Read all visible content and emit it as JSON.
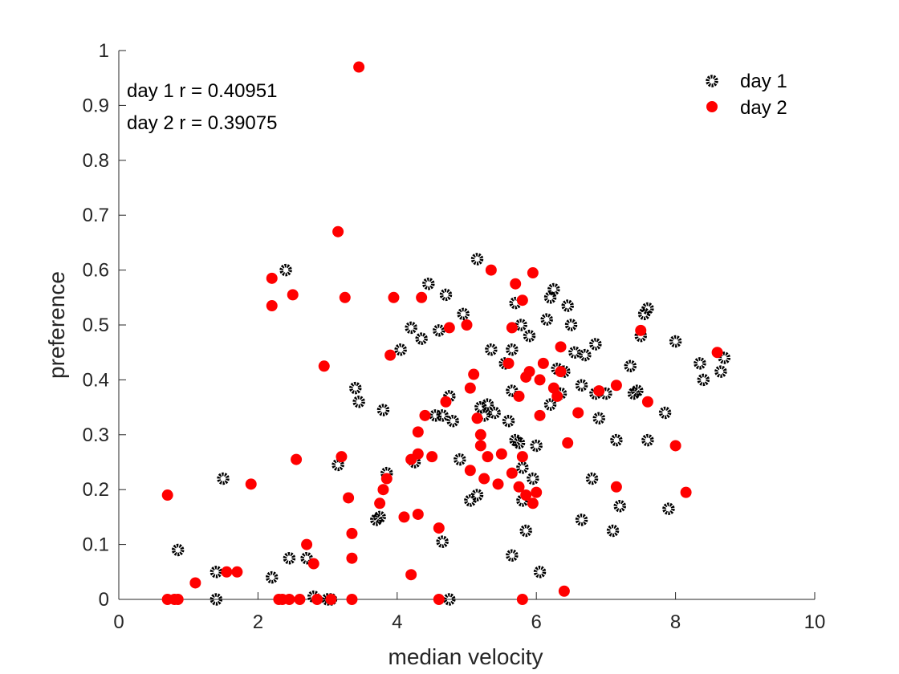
{
  "chart_data": {
    "type": "scatter",
    "title": "",
    "xlabel": "median velocity",
    "ylabel": "preference",
    "xlim": [
      0,
      10
    ],
    "ylim": [
      0,
      1
    ],
    "xticks": [
      "0",
      "2",
      "4",
      "6",
      "8",
      "10"
    ],
    "yticks": [
      "0",
      "0.1",
      "0.2",
      "0.3",
      "0.4",
      "0.5",
      "0.6",
      "0.7",
      "0.8",
      "0.9",
      "1"
    ],
    "grid": false,
    "legend_position": "top-right",
    "annotations": [
      "day 1 r = 0.40951",
      "day 2 r = 0.39075"
    ],
    "series": [
      {
        "name": "day 1",
        "marker": "open-circle",
        "color": "#000000",
        "points": [
          [
            0.85,
            0.09
          ],
          [
            1.4,
            0.05
          ],
          [
            1.4,
            0.0
          ],
          [
            1.5,
            0.22
          ],
          [
            2.2,
            0.04
          ],
          [
            2.4,
            0.6
          ],
          [
            2.45,
            0.075
          ],
          [
            2.7,
            0.075
          ],
          [
            2.8,
            0.005
          ],
          [
            3.0,
            0.0
          ],
          [
            3.05,
            0.0
          ],
          [
            3.15,
            0.245
          ],
          [
            3.4,
            0.385
          ],
          [
            3.45,
            0.36
          ],
          [
            3.7,
            0.145
          ],
          [
            3.75,
            0.15
          ],
          [
            3.8,
            0.345
          ],
          [
            3.85,
            0.23
          ],
          [
            4.05,
            0.455
          ],
          [
            4.2,
            0.495
          ],
          [
            4.25,
            0.25
          ],
          [
            4.35,
            0.475
          ],
          [
            4.45,
            0.575
          ],
          [
            4.55,
            0.335
          ],
          [
            4.6,
            0.49
          ],
          [
            4.65,
            0.105
          ],
          [
            4.65,
            0.335
          ],
          [
            4.7,
            0.555
          ],
          [
            4.75,
            0.0
          ],
          [
            4.75,
            0.37
          ],
          [
            4.8,
            0.325
          ],
          [
            4.9,
            0.255
          ],
          [
            4.95,
            0.52
          ],
          [
            5.05,
            0.18
          ],
          [
            5.15,
            0.19
          ],
          [
            5.15,
            0.62
          ],
          [
            5.2,
            0.35
          ],
          [
            5.25,
            0.335
          ],
          [
            5.3,
            0.355
          ],
          [
            5.35,
            0.455
          ],
          [
            5.4,
            0.34
          ],
          [
            5.55,
            0.43
          ],
          [
            5.6,
            0.325
          ],
          [
            5.65,
            0.455
          ],
          [
            5.65,
            0.38
          ],
          [
            5.65,
            0.08
          ],
          [
            5.7,
            0.54
          ],
          [
            5.7,
            0.29
          ],
          [
            5.75,
            0.285
          ],
          [
            5.78,
            0.5
          ],
          [
            5.8,
            0.18
          ],
          [
            5.8,
            0.24
          ],
          [
            5.85,
            0.125
          ],
          [
            5.9,
            0.48
          ],
          [
            5.95,
            0.22
          ],
          [
            6.0,
            0.28
          ],
          [
            6.05,
            0.05
          ],
          [
            6.15,
            0.51
          ],
          [
            6.2,
            0.55
          ],
          [
            6.2,
            0.355
          ],
          [
            6.25,
            0.565
          ],
          [
            6.3,
            0.42
          ],
          [
            6.35,
            0.375
          ],
          [
            6.4,
            0.415
          ],
          [
            6.45,
            0.535
          ],
          [
            6.5,
            0.5
          ],
          [
            6.55,
            0.45
          ],
          [
            6.65,
            0.145
          ],
          [
            6.65,
            0.39
          ],
          [
            6.7,
            0.445
          ],
          [
            6.8,
            0.22
          ],
          [
            6.85,
            0.465
          ],
          [
            6.85,
            0.375
          ],
          [
            6.9,
            0.33
          ],
          [
            7.0,
            0.375
          ],
          [
            7.1,
            0.125
          ],
          [
            7.15,
            0.29
          ],
          [
            7.2,
            0.17
          ],
          [
            7.35,
            0.425
          ],
          [
            7.4,
            0.375
          ],
          [
            7.45,
            0.38
          ],
          [
            7.5,
            0.48
          ],
          [
            7.55,
            0.52
          ],
          [
            7.6,
            0.53
          ],
          [
            7.6,
            0.29
          ],
          [
            7.85,
            0.34
          ],
          [
            7.9,
            0.165
          ],
          [
            8.0,
            0.47
          ],
          [
            8.35,
            0.43
          ],
          [
            8.4,
            0.4
          ],
          [
            8.65,
            0.415
          ],
          [
            8.7,
            0.44
          ]
        ]
      },
      {
        "name": "day 2",
        "marker": "filled-circle",
        "color": "#ff0000",
        "points": [
          [
            0.7,
            0.19
          ],
          [
            0.7,
            0.0
          ],
          [
            0.8,
            0.0
          ],
          [
            0.85,
            0.0
          ],
          [
            1.1,
            0.03
          ],
          [
            1.55,
            0.05
          ],
          [
            1.7,
            0.05
          ],
          [
            1.9,
            0.21
          ],
          [
            2.2,
            0.535
          ],
          [
            2.2,
            0.585
          ],
          [
            2.3,
            0.0
          ],
          [
            2.35,
            0.0
          ],
          [
            2.45,
            0.0
          ],
          [
            2.5,
            0.555
          ],
          [
            2.55,
            0.255
          ],
          [
            2.6,
            0.0
          ],
          [
            2.7,
            0.1
          ],
          [
            2.8,
            0.065
          ],
          [
            2.85,
            0.0
          ],
          [
            2.95,
            0.425
          ],
          [
            3.05,
            0.0
          ],
          [
            3.15,
            0.67
          ],
          [
            3.2,
            0.26
          ],
          [
            3.25,
            0.55
          ],
          [
            3.3,
            0.185
          ],
          [
            3.35,
            0.0
          ],
          [
            3.35,
            0.075
          ],
          [
            3.35,
            0.12
          ],
          [
            3.45,
            0.97
          ],
          [
            3.75,
            0.175
          ],
          [
            3.8,
            0.2
          ],
          [
            3.85,
            0.22
          ],
          [
            3.9,
            0.445
          ],
          [
            3.95,
            0.55
          ],
          [
            4.1,
            0.15
          ],
          [
            4.2,
            0.255
          ],
          [
            4.2,
            0.045
          ],
          [
            4.3,
            0.265
          ],
          [
            4.3,
            0.305
          ],
          [
            4.3,
            0.155
          ],
          [
            4.35,
            0.55
          ],
          [
            4.4,
            0.335
          ],
          [
            4.5,
            0.26
          ],
          [
            4.6,
            0.13
          ],
          [
            4.6,
            0.0
          ],
          [
            4.7,
            0.36
          ],
          [
            4.75,
            0.495
          ],
          [
            5.0,
            0.5
          ],
          [
            5.05,
            0.385
          ],
          [
            5.05,
            0.235
          ],
          [
            5.1,
            0.41
          ],
          [
            5.15,
            0.33
          ],
          [
            5.2,
            0.3
          ],
          [
            5.2,
            0.28
          ],
          [
            5.25,
            0.22
          ],
          [
            5.3,
            0.26
          ],
          [
            5.35,
            0.6
          ],
          [
            5.45,
            0.21
          ],
          [
            5.5,
            0.265
          ],
          [
            5.6,
            0.43
          ],
          [
            5.65,
            0.23
          ],
          [
            5.65,
            0.495
          ],
          [
            5.7,
            0.575
          ],
          [
            5.75,
            0.205
          ],
          [
            5.75,
            0.37
          ],
          [
            5.8,
            0.545
          ],
          [
            5.8,
            0.26
          ],
          [
            5.8,
            0.0
          ],
          [
            5.85,
            0.405
          ],
          [
            5.85,
            0.19
          ],
          [
            5.9,
            0.415
          ],
          [
            5.95,
            0.175
          ],
          [
            5.95,
            0.595
          ],
          [
            6.0,
            0.195
          ],
          [
            6.05,
            0.4
          ],
          [
            6.05,
            0.335
          ],
          [
            6.1,
            0.43
          ],
          [
            6.25,
            0.385
          ],
          [
            6.3,
            0.37
          ],
          [
            6.35,
            0.415
          ],
          [
            6.35,
            0.46
          ],
          [
            6.4,
            0.015
          ],
          [
            6.45,
            0.285
          ],
          [
            6.6,
            0.34
          ],
          [
            6.9,
            0.38
          ],
          [
            7.15,
            0.39
          ],
          [
            7.15,
            0.205
          ],
          [
            7.5,
            0.49
          ],
          [
            7.6,
            0.36
          ],
          [
            8.0,
            0.28
          ],
          [
            8.15,
            0.195
          ],
          [
            8.6,
            0.45
          ]
        ]
      }
    ]
  }
}
